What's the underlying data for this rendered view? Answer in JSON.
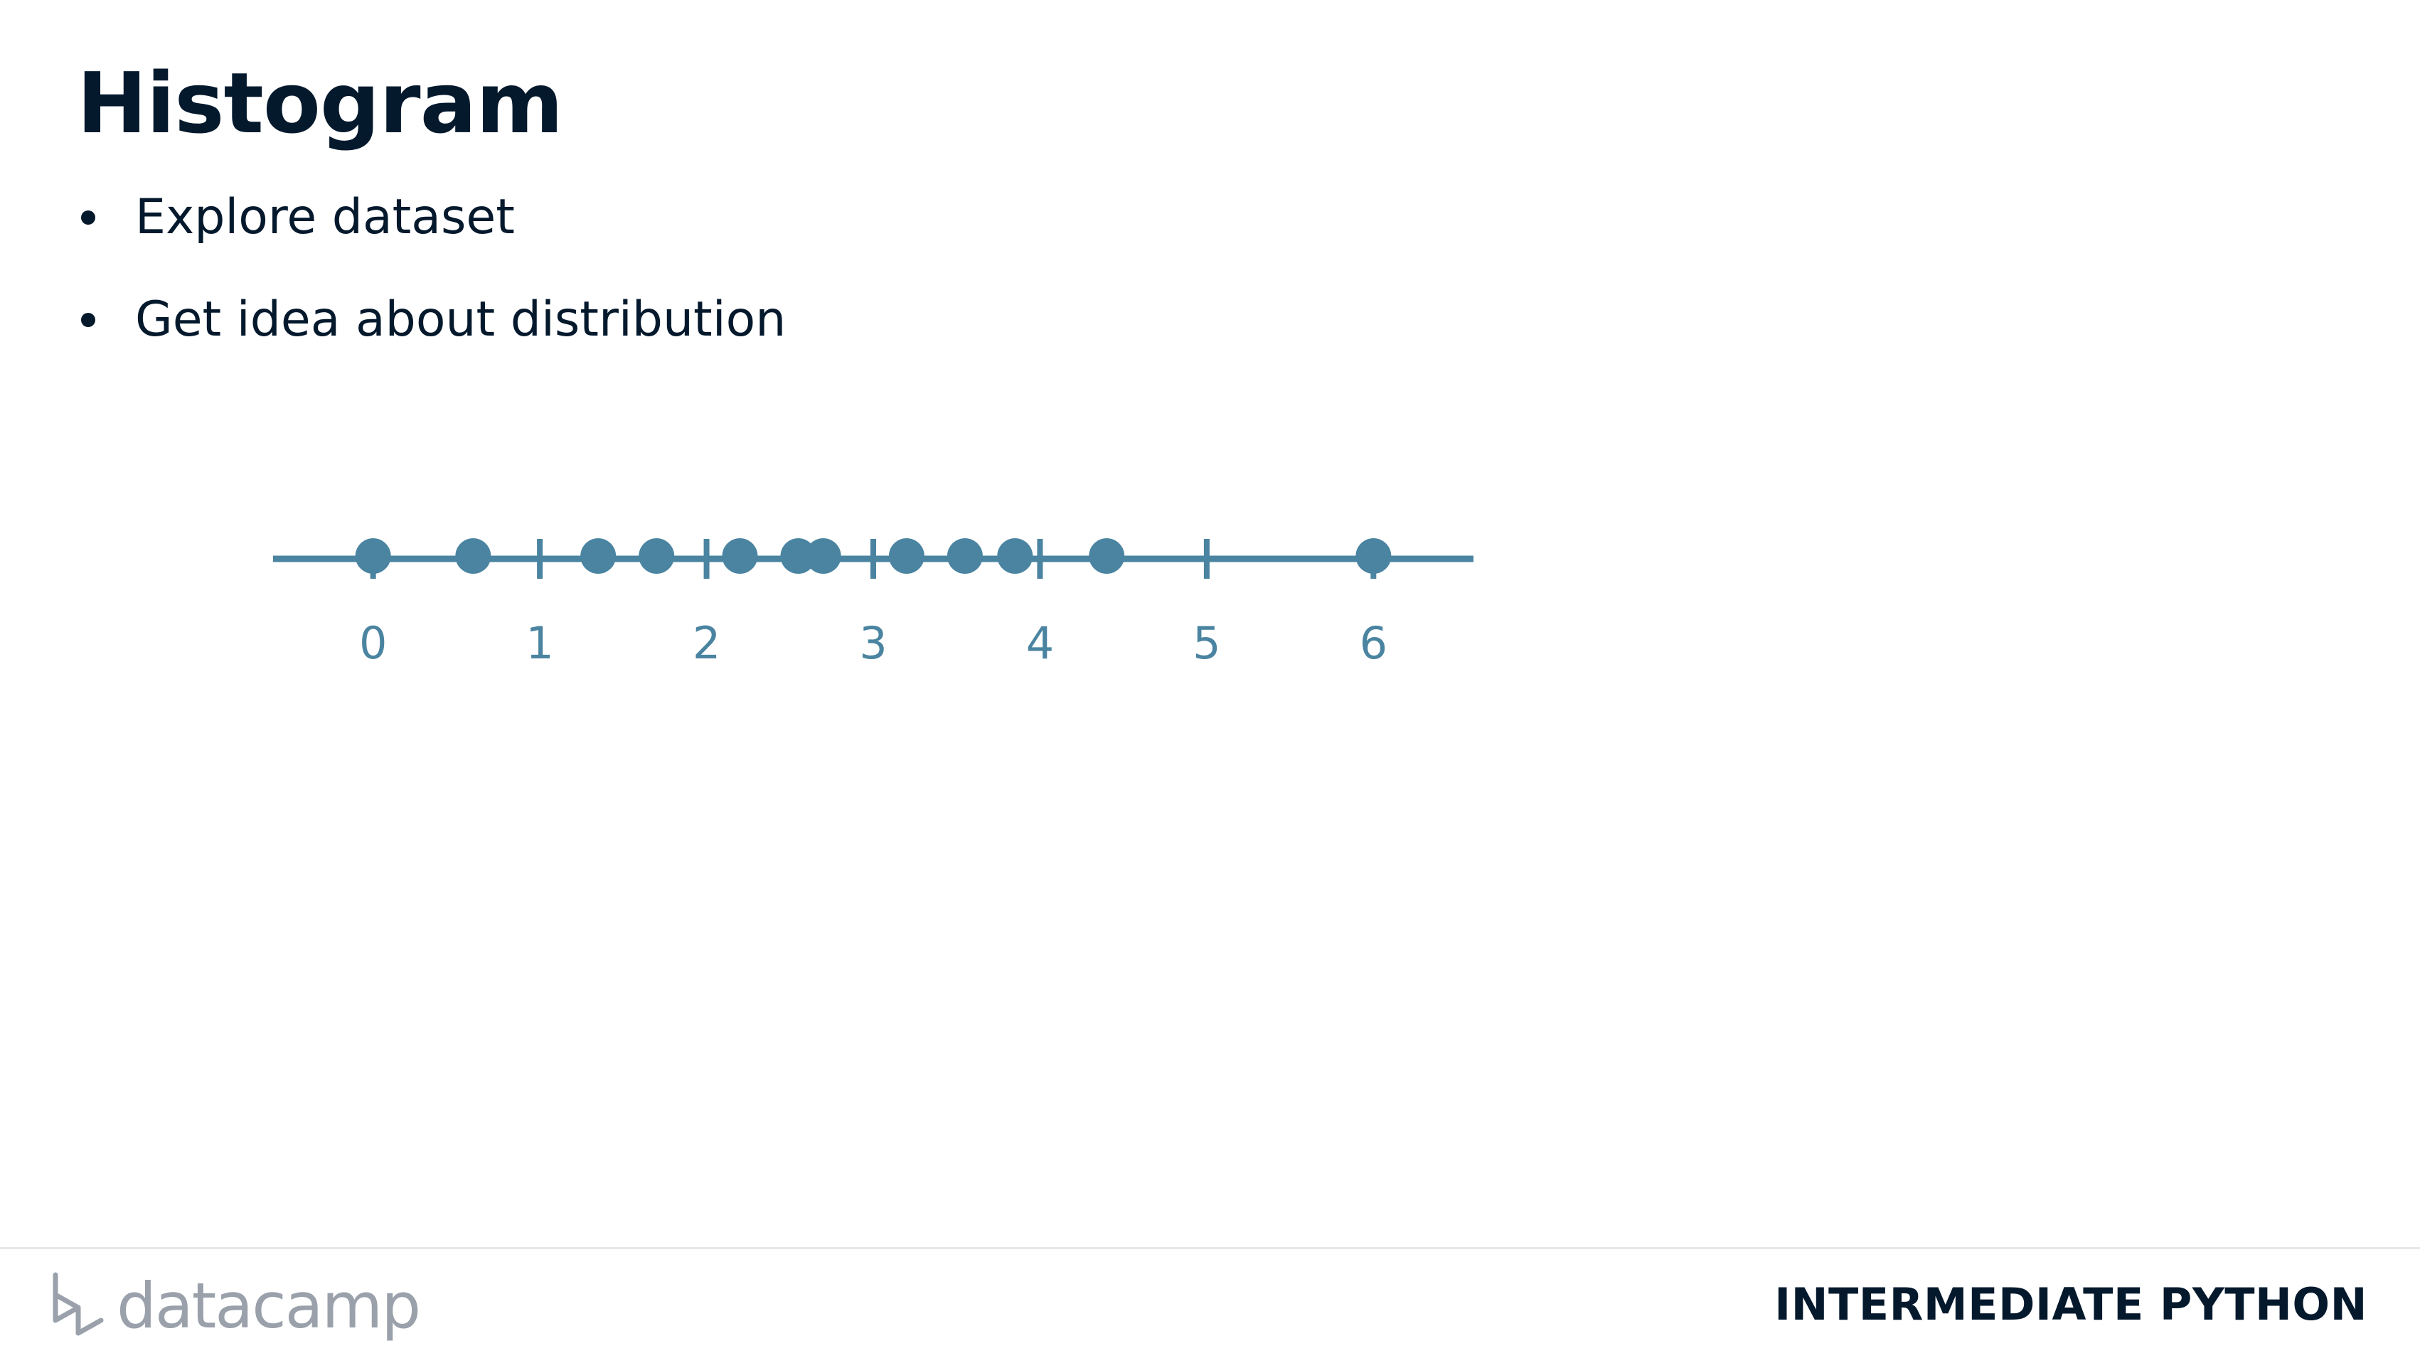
{
  "slide": {
    "title": "Histogram",
    "bullets": [
      "Explore dataset",
      "Get idea about distribution"
    ]
  },
  "chart_data": {
    "type": "scatter",
    "x": [
      0.0,
      0.6,
      1.35,
      1.7,
      2.2,
      2.55,
      2.7,
      3.2,
      3.55,
      3.85,
      4.4,
      6.0
    ],
    "y": [
      0,
      0,
      0,
      0,
      0,
      0,
      0,
      0,
      0,
      0,
      0,
      0
    ],
    "xlim": [
      -0.6,
      6.6
    ],
    "ticks": [
      "0",
      "1",
      "2",
      "3",
      "4",
      "5",
      "6"
    ],
    "grid": false,
    "title": "",
    "xlabel": "",
    "ylabel": "",
    "color": "#4a84a1"
  },
  "footer": {
    "brand": "datacamp",
    "course": "INTERMEDIATE PYTHON"
  },
  "colors": {
    "text": "#05192d",
    "accent": "#4a84a1",
    "brand_gray": "#9aa1ab",
    "divider": "#e6e7e8"
  }
}
